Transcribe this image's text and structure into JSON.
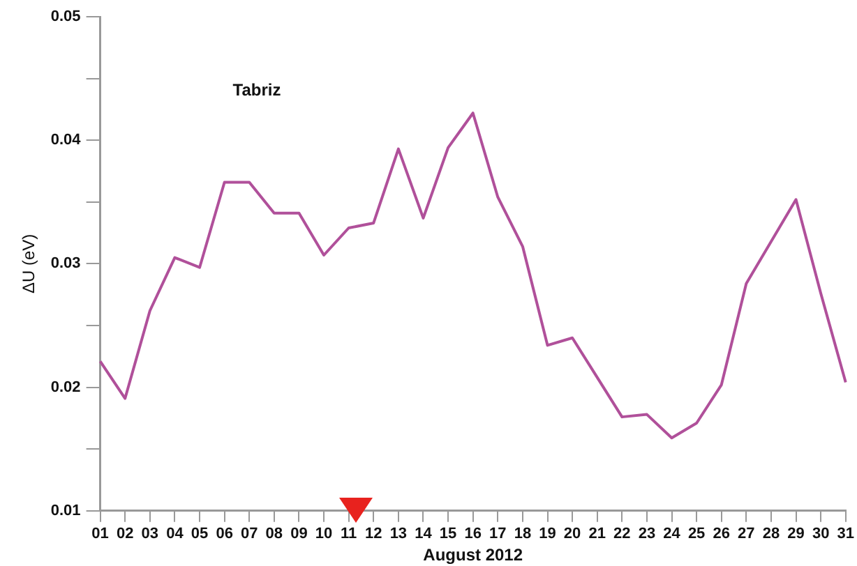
{
  "chart_data": {
    "type": "line",
    "xlabel": "August 2012",
    "ylabel": "ΔU (eV)",
    "annotations": [
      "Tabriz"
    ],
    "categories": [
      "01",
      "02",
      "03",
      "04",
      "05",
      "06",
      "07",
      "08",
      "09",
      "10",
      "11",
      "12",
      "13",
      "14",
      "15",
      "16",
      "17",
      "18",
      "19",
      "20",
      "21",
      "22",
      "23",
      "24",
      "25",
      "26",
      "27",
      "28",
      "29",
      "30",
      "31"
    ],
    "series": [
      {
        "color": "#b0509a",
        "values": [
          0.0221,
          0.0191,
          0.0262,
          0.0305,
          0.0297,
          0.0366,
          0.0366,
          0.0341,
          0.0341,
          0.0307,
          0.0329,
          0.0333,
          0.0393,
          0.0337,
          0.0394,
          0.0422,
          0.0354,
          0.0314,
          0.0234,
          0.024,
          0.0208,
          0.0176,
          0.0178,
          0.0159,
          0.0171,
          0.0202,
          0.0284,
          0.0318,
          0.0352,
          0.0276,
          0.0204
        ]
      }
    ],
    "ylim": [
      0.01,
      0.05
    ],
    "yticks": [
      {
        "value": 0.01,
        "label": "0.01"
      },
      {
        "value": 0.015,
        "label": null
      },
      {
        "value": 0.02,
        "label": "0.02"
      },
      {
        "value": 0.025,
        "label": null
      },
      {
        "value": 0.03,
        "label": "0.03"
      },
      {
        "value": 0.035,
        "label": null
      },
      {
        "value": 0.04,
        "label": "0.04"
      },
      {
        "value": 0.045,
        "label": null
      },
      {
        "value": 0.05,
        "label": "0.05"
      }
    ],
    "grid": false,
    "legend": false,
    "marker": "none",
    "line_style": "solid"
  }
}
